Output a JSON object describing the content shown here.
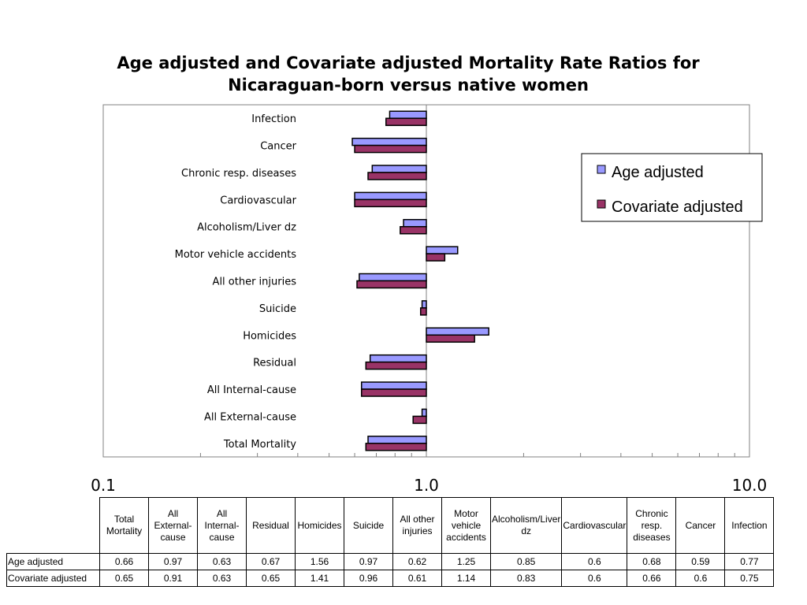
{
  "chart_data": {
    "type": "bar",
    "orientation": "horizontal",
    "title": "Age adjusted and Covariate adjusted Mortality Rate Ratios for Nicaraguan-born versus native women",
    "title_lines": [
      "Age adjusted and Covariate adjusted Mortality Rate Ratios for",
      "Nicaraguan-born versus native women"
    ],
    "x_scale": "log",
    "xlim": [
      0.1,
      10.0
    ],
    "x_tick_labels": [
      "0.1",
      "1.0",
      "10.0"
    ],
    "x_ticks": [
      0.1,
      1.0,
      10.0
    ],
    "reference_value": 1.0,
    "grid": false,
    "legend_position": "top-right",
    "categories": [
      "Infection",
      "Cancer",
      "Chronic resp. diseases",
      "Cardiovascular",
      "Alcoholism/Liver dz",
      "Motor vehicle accidents",
      "All other injuries",
      "Suicide",
      "Homicides",
      "Residual",
      "All Internal-cause",
      "All External-cause",
      "Total Mortality"
    ],
    "series": [
      {
        "name": "Age adjusted",
        "color": "#9999ff",
        "values": [
          0.77,
          0.59,
          0.68,
          0.6,
          0.85,
          1.25,
          0.62,
          0.97,
          1.56,
          0.67,
          0.63,
          0.97,
          0.66
        ]
      },
      {
        "name": "Covariate adjusted",
        "color": "#993366",
        "values": [
          0.75,
          0.6,
          0.66,
          0.6,
          0.83,
          1.14,
          0.61,
          0.96,
          1.41,
          0.65,
          0.63,
          0.91,
          0.65
        ]
      }
    ]
  },
  "table": {
    "headers": [
      "Total Mortality",
      "All External-cause",
      "All Internal-cause",
      "Residual",
      "Homicides",
      "Suicide",
      "All other injuries",
      "Motor vehicle accidents",
      "Alcoholism/Liver dz",
      "Cardiovascular",
      "Chronic resp. diseases",
      "Cancer",
      "Infection"
    ],
    "rows": [
      {
        "label": "Age adjusted",
        "values": [
          "0.66",
          "0.97",
          "0.63",
          "0.67",
          "1.56",
          "0.97",
          "0.62",
          "1.25",
          "0.85",
          "0.6",
          "0.68",
          "0.59",
          "0.77"
        ]
      },
      {
        "label": "Covariate adjusted",
        "values": [
          "0.65",
          "0.91",
          "0.63",
          "0.65",
          "1.41",
          "0.96",
          "0.61",
          "1.14",
          "0.83",
          "0.6",
          "0.66",
          "0.6",
          "0.75"
        ]
      }
    ]
  }
}
